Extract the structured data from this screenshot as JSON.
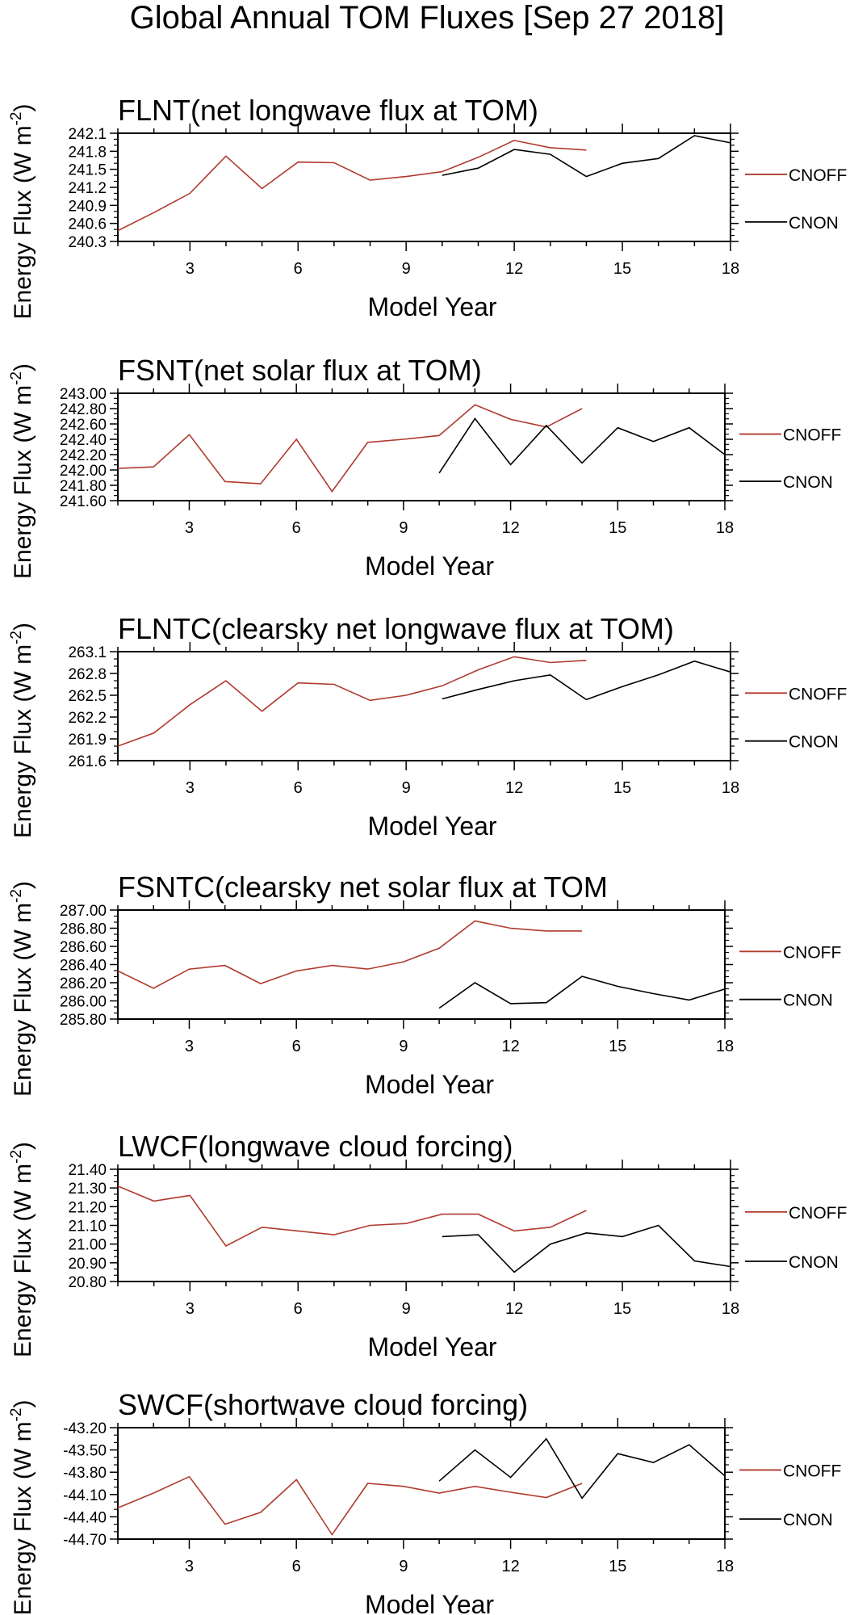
{
  "title": "Global Annual TOM Fluxes [Sep 27 2018]",
  "colors": {
    "cnoff": "#b03a2e",
    "cnon": "#000000"
  },
  "chart_data": [
    {
      "type": "line",
      "title": "FLNT(net longwave flux at TOM)",
      "xlabel": "Model Year",
      "ylabel_main": "Energy Flux (W m",
      "ylabel_sup": "-2",
      "ylabel_end": ")",
      "xlim": [
        1,
        18
      ],
      "ylim": [
        240.3,
        242.1
      ],
      "xticks": [
        3,
        6,
        9,
        12,
        15,
        18
      ],
      "yticks": [
        "240.3",
        "240.6",
        "240.9",
        "241.2",
        "241.5",
        "241.8",
        "242.1"
      ],
      "series": [
        {
          "name": "CNOFF",
          "color": "#b03a2e",
          "x": [
            1,
            2,
            3,
            4,
            5,
            6,
            7,
            8,
            9,
            10,
            11,
            12,
            13,
            14
          ],
          "y": [
            240.48,
            240.78,
            241.1,
            241.72,
            241.18,
            241.62,
            241.61,
            241.32,
            241.38,
            241.46,
            241.7,
            241.98,
            241.86,
            241.82
          ]
        },
        {
          "name": "CNON",
          "color": "#000000",
          "x": [
            10,
            11,
            12,
            13,
            14,
            15,
            16,
            17,
            18
          ],
          "y": [
            241.4,
            241.52,
            241.83,
            241.75,
            241.38,
            241.6,
            241.68,
            242.06,
            241.94
          ]
        }
      ]
    },
    {
      "type": "line",
      "title": "FSNT(net solar flux at TOM)",
      "xlabel": "Model Year",
      "ylabel_main": "Energy Flux (W m",
      "ylabel_sup": "-2",
      "ylabel_end": ")",
      "xlim": [
        1,
        18
      ],
      "ylim": [
        241.6,
        243.0
      ],
      "xticks": [
        3,
        6,
        9,
        12,
        15,
        18
      ],
      "yticks": [
        "241.60",
        "241.80",
        "242.00",
        "242.20",
        "242.40",
        "242.60",
        "242.80",
        "243.00"
      ],
      "series": [
        {
          "name": "CNOFF",
          "color": "#b03a2e",
          "x": [
            1,
            2,
            3,
            4,
            5,
            6,
            7,
            8,
            9,
            10,
            11,
            12,
            13,
            14
          ],
          "y": [
            242.02,
            242.04,
            242.46,
            241.85,
            241.82,
            242.4,
            241.72,
            242.36,
            242.4,
            242.45,
            242.85,
            242.66,
            242.56,
            242.8
          ]
        },
        {
          "name": "CNON",
          "color": "#000000",
          "x": [
            10,
            11,
            12,
            13,
            14,
            15,
            16,
            17,
            18
          ],
          "y": [
            241.96,
            242.67,
            242.07,
            242.58,
            242.09,
            242.55,
            242.37,
            242.55,
            242.2
          ]
        }
      ]
    },
    {
      "type": "line",
      "title": "FLNTC(clearsky net longwave flux at TOM)",
      "xlabel": "Model Year",
      "ylabel_main": "Energy Flux (W m",
      "ylabel_sup": "-2",
      "ylabel_end": ")",
      "xlim": [
        1,
        18
      ],
      "ylim": [
        261.6,
        263.1
      ],
      "xticks": [
        3,
        6,
        9,
        12,
        15,
        18
      ],
      "yticks": [
        "261.6",
        "261.9",
        "262.2",
        "262.5",
        "262.8",
        "263.1"
      ],
      "series": [
        {
          "name": "CNOFF",
          "color": "#b03a2e",
          "x": [
            1,
            2,
            3,
            4,
            5,
            6,
            7,
            8,
            9,
            10,
            11,
            12,
            13,
            14
          ],
          "y": [
            261.8,
            261.98,
            262.37,
            262.7,
            262.28,
            262.67,
            262.65,
            262.43,
            262.5,
            262.63,
            262.85,
            263.03,
            262.95,
            262.98
          ]
        },
        {
          "name": "CNON",
          "color": "#000000",
          "x": [
            10,
            11,
            12,
            13,
            14,
            15,
            16,
            17,
            18
          ],
          "y": [
            262.45,
            262.58,
            262.7,
            262.78,
            262.44,
            262.62,
            262.78,
            262.97,
            262.82
          ]
        }
      ]
    },
    {
      "type": "line",
      "title": "FSNTC(clearsky net solar flux at TOM",
      "xlabel": "Model Year",
      "ylabel_main": "Energy Flux (W m",
      "ylabel_sup": "-2",
      "ylabel_end": ")",
      "xlim": [
        1,
        18
      ],
      "ylim": [
        285.8,
        287.0
      ],
      "xticks": [
        3,
        6,
        9,
        12,
        15,
        18
      ],
      "yticks": [
        "285.80",
        "286.00",
        "286.20",
        "286.40",
        "286.60",
        "286.80",
        "287.00"
      ],
      "series": [
        {
          "name": "CNOFF",
          "color": "#b03a2e",
          "x": [
            1,
            2,
            3,
            4,
            5,
            6,
            7,
            8,
            9,
            10,
            11,
            12,
            13,
            14
          ],
          "y": [
            286.33,
            286.14,
            286.35,
            286.39,
            286.19,
            286.33,
            286.39,
            286.35,
            286.43,
            286.58,
            286.88,
            286.8,
            286.77,
            286.77
          ]
        },
        {
          "name": "CNON",
          "color": "#000000",
          "x": [
            10,
            11,
            12,
            13,
            14,
            15,
            16,
            17,
            18
          ],
          "y": [
            285.92,
            286.2,
            285.97,
            285.98,
            286.27,
            286.16,
            286.08,
            286.01,
            286.13
          ]
        }
      ]
    },
    {
      "type": "line",
      "title": "LWCF(longwave cloud forcing)",
      "xlabel": "Model Year",
      "ylabel_main": "Energy Flux (W m",
      "ylabel_sup": "-2",
      "ylabel_end": ")",
      "xlim": [
        1,
        18
      ],
      "ylim": [
        20.8,
        21.4
      ],
      "xticks": [
        3,
        6,
        9,
        12,
        15,
        18
      ],
      "yticks": [
        "20.80",
        "20.90",
        "21.00",
        "21.10",
        "21.20",
        "21.30",
        "21.40"
      ],
      "series": [
        {
          "name": "CNOFF",
          "color": "#b03a2e",
          "x": [
            1,
            2,
            3,
            4,
            5,
            6,
            7,
            8,
            9,
            10,
            11,
            12,
            13,
            14
          ],
          "y": [
            21.31,
            21.23,
            21.26,
            20.99,
            21.09,
            21.07,
            21.05,
            21.1,
            21.11,
            21.16,
            21.16,
            21.07,
            21.09,
            21.18
          ]
        },
        {
          "name": "CNON",
          "color": "#000000",
          "x": [
            10,
            11,
            12,
            13,
            14,
            15,
            16,
            17,
            18
          ],
          "y": [
            21.04,
            21.05,
            20.85,
            21.0,
            21.06,
            21.04,
            21.1,
            20.91,
            20.88
          ]
        }
      ]
    },
    {
      "type": "line",
      "title": "SWCF(shortwave cloud forcing)",
      "xlabel": "Model Year",
      "ylabel_main": "Energy Flux (W m",
      "ylabel_sup": "-2",
      "ylabel_end": ")",
      "xlim": [
        1,
        18
      ],
      "ylim": [
        -44.7,
        -43.2
      ],
      "xticks": [
        3,
        6,
        9,
        12,
        15,
        18
      ],
      "yticks": [
        "-44.70",
        "-44.40",
        "-44.10",
        "-43.80",
        "-43.50",
        "-43.20"
      ],
      "series": [
        {
          "name": "CNOFF",
          "color": "#b03a2e",
          "x": [
            1,
            2,
            3,
            4,
            5,
            6,
            7,
            8,
            9,
            10,
            11,
            12,
            13,
            14
          ],
          "y": [
            -44.28,
            -44.08,
            -43.86,
            -44.5,
            -44.34,
            -43.9,
            -44.64,
            -43.95,
            -43.99,
            -44.08,
            -43.99,
            -44.07,
            -44.14,
            -43.95
          ]
        },
        {
          "name": "CNON",
          "color": "#000000",
          "x": [
            10,
            11,
            12,
            13,
            14,
            15,
            16,
            17,
            18
          ],
          "y": [
            -43.92,
            -43.5,
            -43.87,
            -43.35,
            -44.15,
            -43.55,
            -43.67,
            -43.43,
            -43.85
          ]
        }
      ]
    }
  ]
}
